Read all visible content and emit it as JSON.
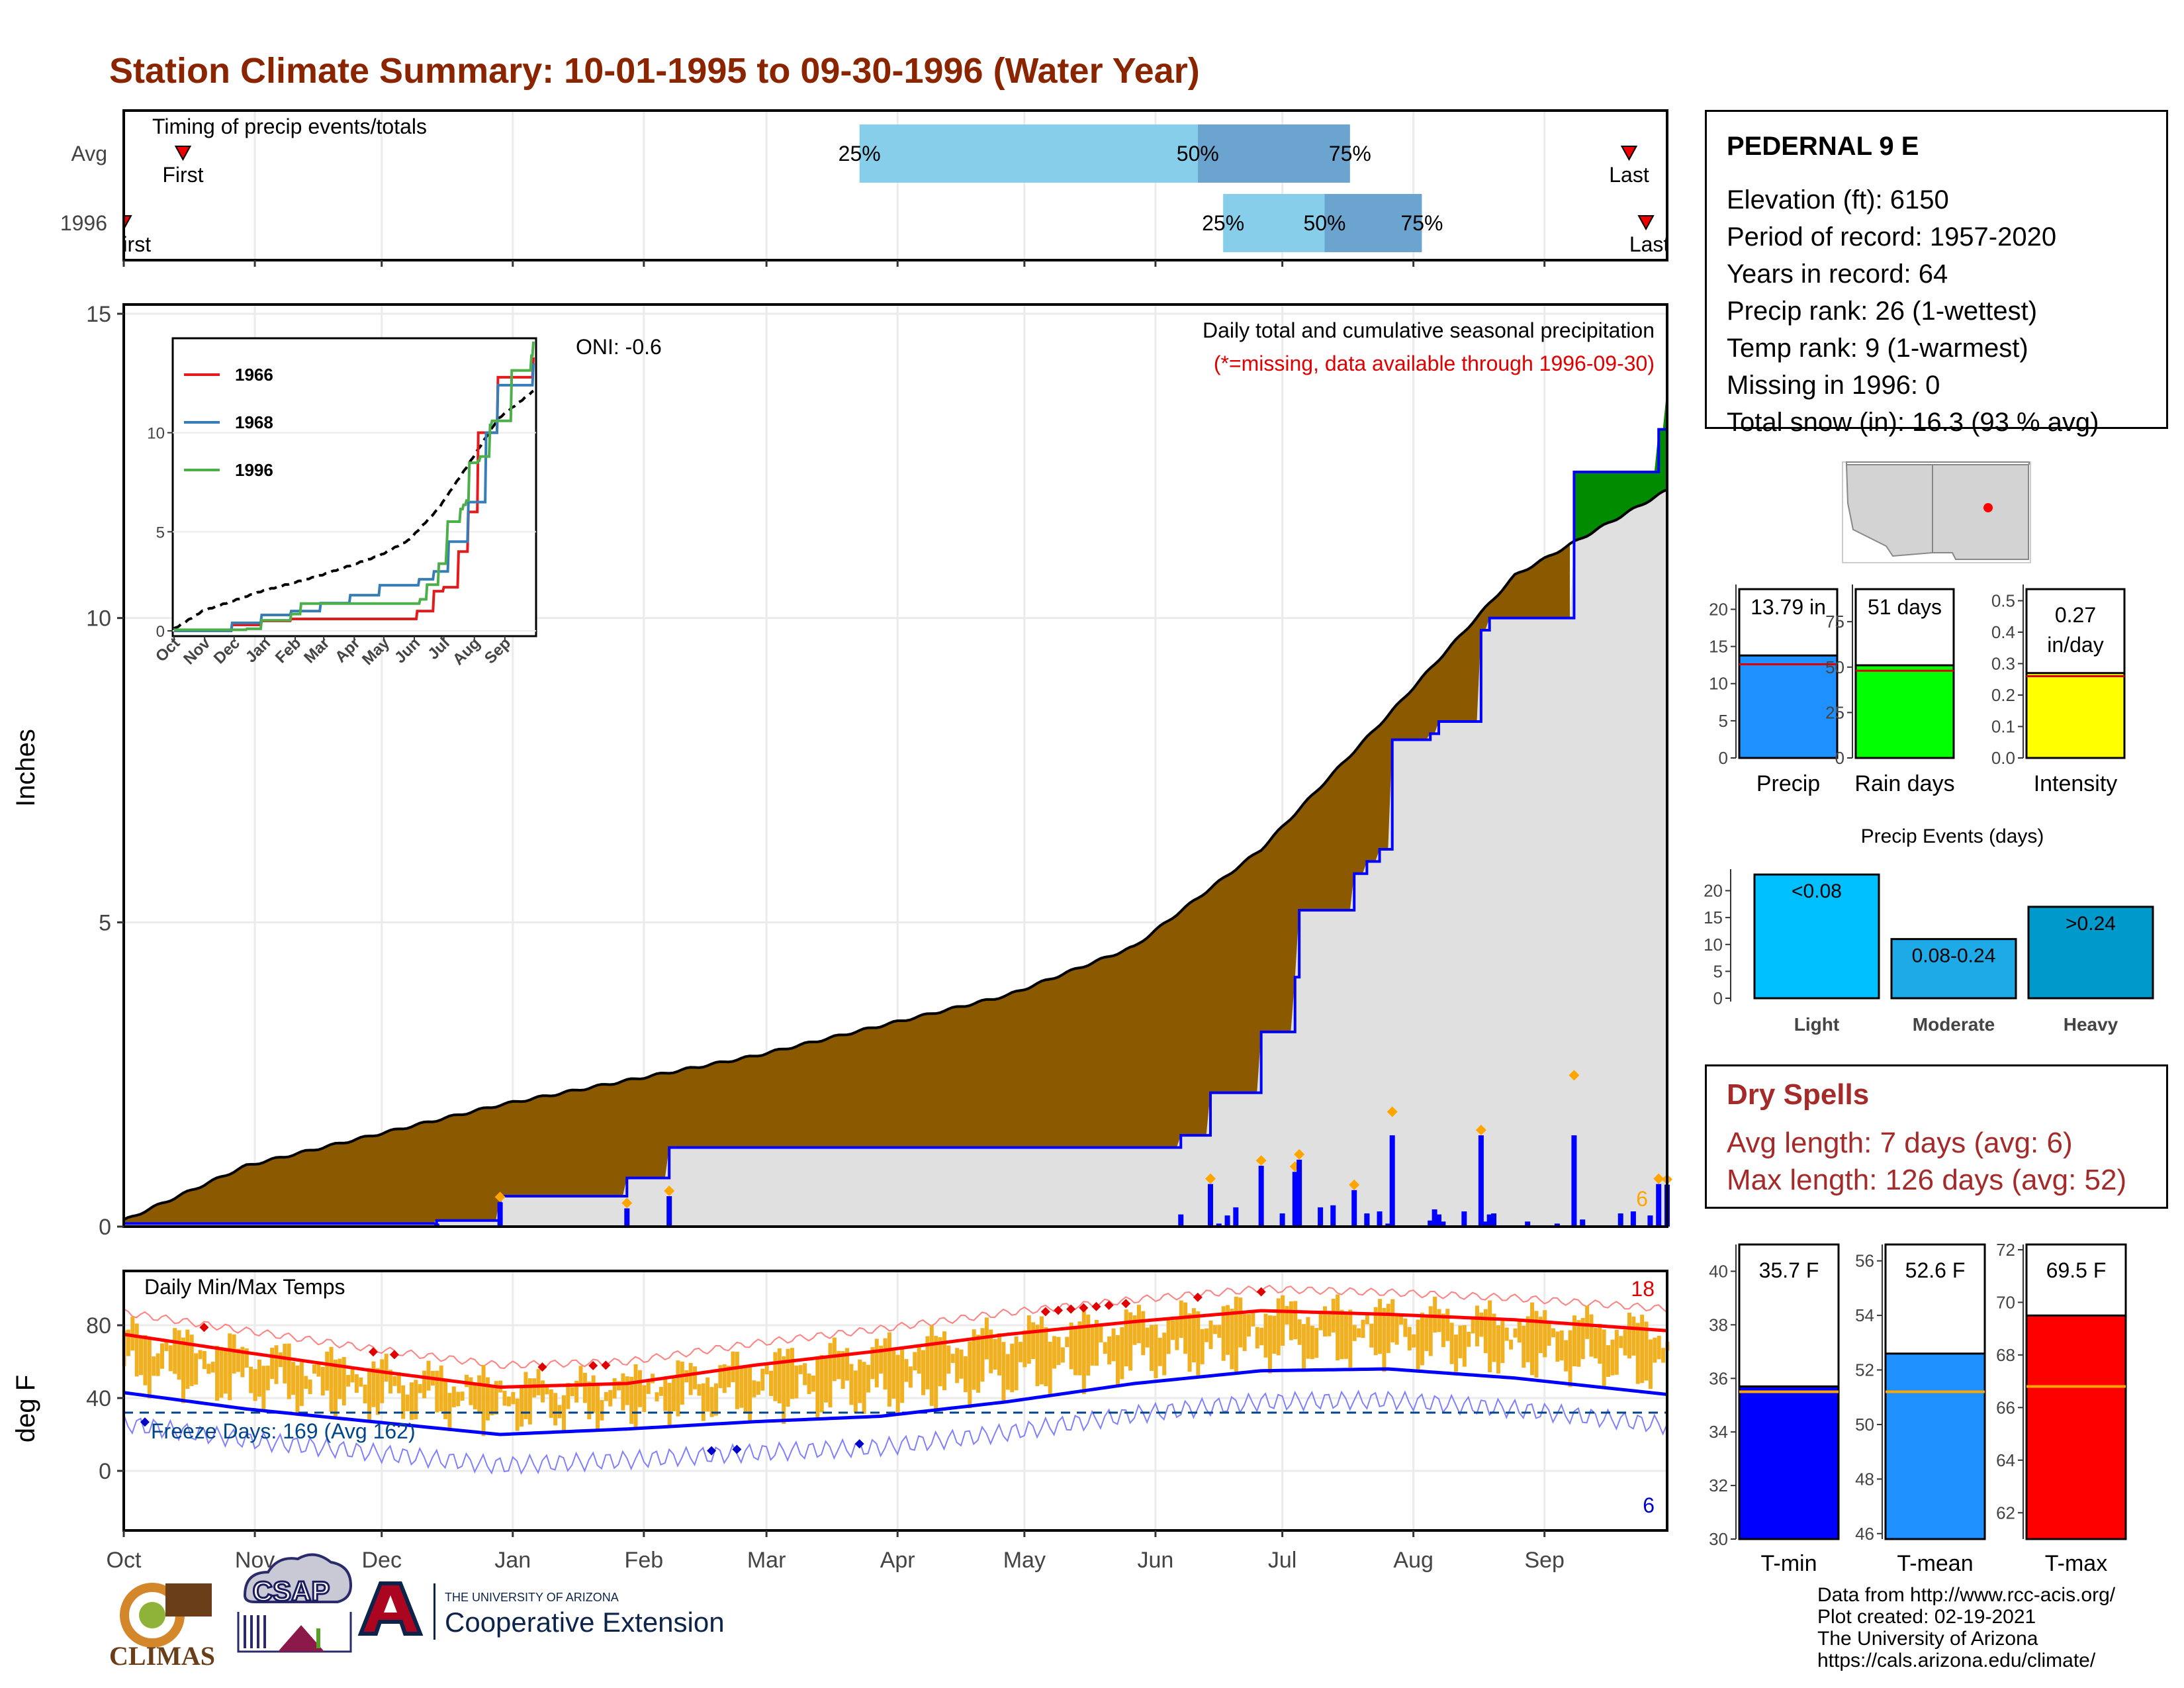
{
  "title": "Station Climate Summary: 10-01-1995 to 09-30-1996 (Water Year)",
  "colors": {
    "title": "#8b2500",
    "brown": "#8b5a00",
    "green": "#008b00",
    "blue_line": "#0000ff",
    "gold": "#f0b020",
    "tmin": "#0000ff",
    "tmean": "#1e90ff",
    "tmax": "#ff0000",
    "avg_line": "#ffa500"
  },
  "timing": {
    "panel_label": "Timing of precip events/totals",
    "rows": [
      {
        "label": "Avg",
        "first": "First",
        "last": "Last",
        "p25": "25%",
        "p50": "50%",
        "p75": "75%"
      },
      {
        "label": "1996",
        "first": "First",
        "last": "Last",
        "p25": "25%",
        "p50": "50%",
        "p75": "75%"
      }
    ],
    "avg_dates_day_of_wy": {
      "first": 15,
      "p25": 175,
      "p50": 255,
      "p75": 291,
      "last": 357
    },
    "y1996_dates_day_of_wy": {
      "first": 1,
      "p25": 261,
      "p50": 285,
      "p75": 308,
      "last": 361
    }
  },
  "precip": {
    "ylabel": "Inches",
    "yticks": [
      "0",
      "5",
      "10",
      "15"
    ],
    "ylim": [
      0,
      15
    ],
    "annotation_title": "Daily total and cumulative seasonal precipitation",
    "annotation_missing": "(*=missing, data available through 1996-09-30)",
    "oni": "ONI: -0.6",
    "count_label": "6"
  },
  "inset": {
    "yticks": [
      "0",
      "5",
      "10"
    ],
    "xticks": [
      "Oct",
      "Nov",
      "Dec",
      "Jan",
      "Feb",
      "Mar",
      "Apr",
      "May",
      "Jun",
      "Jul",
      "Aug",
      "Sep"
    ],
    "legend": [
      "1966",
      "1968",
      "1996"
    ],
    "legend_colors": [
      "#e41a1c",
      "#377eb8",
      "#4daf4a"
    ]
  },
  "temps": {
    "panel_label": "Daily Min/Max Temps",
    "ylabel": "deg F",
    "yticks": [
      "0",
      "40",
      "80"
    ],
    "freeze_label": "Freeze Days: 169 (Avg 162)",
    "high_count": "18",
    "low_count": "6"
  },
  "months": [
    "Oct",
    "Nov",
    "Dec",
    "Jan",
    "Feb",
    "Mar",
    "Apr",
    "May",
    "Jun",
    "Jul",
    "Aug",
    "Sep"
  ],
  "station": {
    "name": "PEDERNAL 9 E",
    "lines": [
      "Elevation (ft): 6150",
      "Period of record: 1957-2020",
      "Years in record: 64",
      "Precip rank: 26 (1-wettest)",
      "Temp rank: 9 (1-warmest)",
      "Missing in 1996: 0",
      "Total snow (in): 16.3 (93 % avg)"
    ]
  },
  "bars_top": [
    {
      "label": "Precip",
      "value_text": "13.79 in",
      "yticks": [
        "0",
        "5",
        "10",
        "15",
        "20"
      ],
      "ymax": 22,
      "value": 13.79,
      "avg": 12.6,
      "color": "#1e90ff"
    },
    {
      "label": "Rain days",
      "value_text": "51 days",
      "yticks": [
        "0",
        "25",
        "50",
        "75"
      ],
      "ymax": 90,
      "value": 51,
      "avg": 48,
      "color": "#00ff00"
    },
    {
      "label": "Intensity",
      "value_text_1": "0.27",
      "value_text_2": "in/day",
      "yticks": [
        "0.0",
        "0.1",
        "0.2",
        "0.3",
        "0.4",
        "0.5"
      ],
      "ymax": 0.52,
      "value": 0.27,
      "avg": 0.26,
      "color": "#ffff00"
    }
  ],
  "precip_events": {
    "title": "Precip Events (days)",
    "yticks": [
      "0",
      "5",
      "10",
      "15",
      "20"
    ],
    "ymax": 24,
    "bars": [
      {
        "label": "Light",
        "value_label": "<0.08",
        "value": 23,
        "color": "#00bfff"
      },
      {
        "label": "Moderate",
        "value_label": "0.08-0.24",
        "value": 11,
        "color": "#1eaae6"
      },
      {
        "label": "Heavy",
        "value_label": ">0.24",
        "value": 17,
        "color": "#0099cc"
      }
    ]
  },
  "dry_spells": {
    "title": "Dry Spells",
    "avg_line": "Avg length: 7 days (avg: 6)",
    "max_line": "Max length: 126 days (avg: 52)"
  },
  "temp_bars": [
    {
      "label": "T-min",
      "value_text": "35.7 F",
      "yticks": [
        "30",
        "32",
        "34",
        "36",
        "38",
        "40"
      ],
      "ymin": 30,
      "ymax": 41,
      "value": 35.7,
      "avg": 35.5,
      "color": "#0000ff"
    },
    {
      "label": "T-mean",
      "value_text": "52.6 F",
      "yticks": [
        "46",
        "48",
        "50",
        "52",
        "54",
        "56"
      ],
      "ymin": 45.8,
      "ymax": 56.6,
      "value": 52.6,
      "avg": 51.2,
      "color": "#1e90ff"
    },
    {
      "label": "T-max",
      "value_text": "69.5 F",
      "yticks": [
        "62",
        "64",
        "66",
        "68",
        "70",
        "72"
      ],
      "ymin": 61,
      "ymax": 72.2,
      "value": 69.5,
      "avg": 66.8,
      "color": "#ff0000"
    }
  ],
  "logos": {
    "climas": "CLIMAS",
    "csap": "CSAP",
    "ua_small": "THE UNIVERSITY OF ARIZONA",
    "ua_big": "Cooperative Extension"
  },
  "credits": [
    "Data from http://www.rcc-acis.org/",
    "Plot created: 02-19-2021",
    "The University of Arizona",
    "https://cals.arizona.edu/climate/"
  ],
  "chart_data": [
    {
      "type": "line",
      "title": "Daily total and cumulative seasonal precipitation",
      "ylabel": "Inches",
      "ylim": [
        0,
        15
      ],
      "x_units": "day of water year (Oct 1 = 1)",
      "series": [
        {
          "name": "cumulative 1996",
          "x": [
            1,
            75,
            90,
            96,
            120,
            124,
            130,
            250,
            251,
            258,
            270,
            278,
            279,
            290,
            292,
            295,
            298,
            301,
            310,
            312,
            322,
            324,
            339,
            344,
            364,
            366
          ],
          "y": [
            0.05,
            0.1,
            0.5,
            0.5,
            0.8,
            0.8,
            1.3,
            1.3,
            1.5,
            2.2,
            3.2,
            4.1,
            5.2,
            5.2,
            5.8,
            6.0,
            6.2,
            8.0,
            8.1,
            8.3,
            9.8,
            10.0,
            10.0,
            12.4,
            13.1,
            13.79
          ]
        },
        {
          "values_avg_x": [
            1,
            30,
            60,
            90,
            120,
            150,
            180,
            210,
            240,
            270,
            300,
            330,
            366
          ],
          "values_avg_y": [
            0.1,
            1.0,
            1.5,
            2.0,
            2.4,
            2.8,
            3.3,
            3.8,
            4.6,
            6.2,
            8.4,
            10.7,
            12.1
          ],
          "name": "average"
        }
      ]
    },
    {
      "type": "line",
      "title": "Daily Min/Max Temps",
      "ylabel": "deg F",
      "x_units": "day of water year",
      "series": [
        {
          "name": "avg max",
          "x": [
            1,
            30,
            60,
            90,
            120,
            150,
            180,
            210,
            240,
            270,
            300,
            330,
            366
          ],
          "y": [
            75,
            65,
            55,
            46,
            48,
            58,
            66,
            75,
            82,
            88,
            86,
            83,
            77
          ]
        },
        {
          "name": "avg min",
          "x": [
            1,
            30,
            60,
            90,
            120,
            150,
            180,
            210,
            240,
            270,
            300,
            330,
            366
          ],
          "y": [
            43,
            34,
            27,
            20,
            23,
            27,
            30,
            38,
            48,
            55,
            56,
            51,
            42
          ]
        },
        {
          "name": "freeze threshold",
          "x": [
            1,
            366
          ],
          "y": [
            32,
            32
          ]
        }
      ]
    }
  ]
}
